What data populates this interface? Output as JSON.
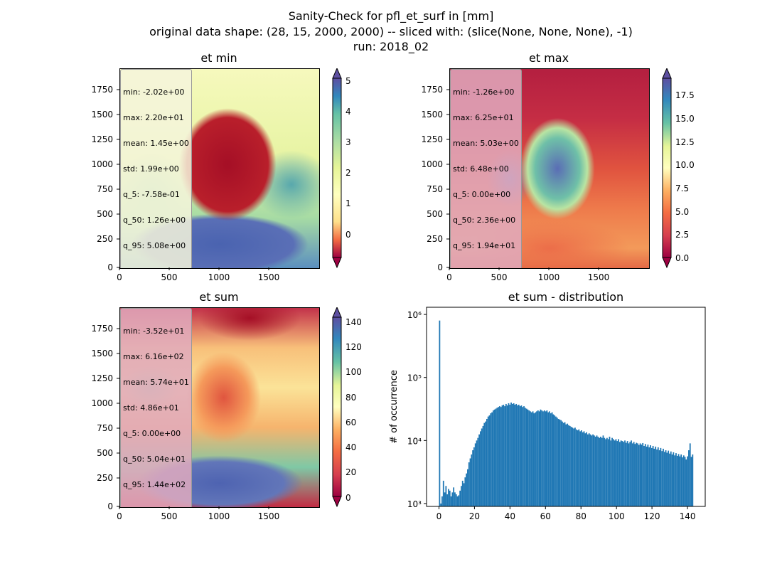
{
  "title": {
    "line1": "Sanity-Check for pfl_et_surf in [mm]",
    "line2": "original data shape: (28, 15, 2000, 2000) -- sliced with: (slice(None, None, None), -1)",
    "line3": "run: 2018_02"
  },
  "panels": {
    "et_min": {
      "title": "et min",
      "stats": [
        "min: -2.02e+00",
        "max: 2.20e+01",
        "mean: 1.45e+00",
        "std: 1.99e+00",
        "q_5: -7.58e-01",
        "q_50: 1.26e+00",
        "q_95: 5.08e+00"
      ],
      "colorbar_ticks": [
        "5",
        "4",
        "3",
        "2",
        "1",
        "0"
      ]
    },
    "et_max": {
      "title": "et max",
      "stats": [
        "min: -1.26e+00",
        "max: 6.25e+01",
        "mean: 5.03e+00",
        "std: 6.48e+00",
        "q_5: 0.00e+00",
        "q_50: 2.36e+00",
        "q_95: 1.94e+01"
      ],
      "colorbar_ticks": [
        "17.5",
        "15.0",
        "12.5",
        "10.0",
        "7.5",
        "5.0",
        "2.5",
        "0.0"
      ]
    },
    "et_sum": {
      "title": "et sum",
      "stats": [
        "min: -3.52e+01",
        "max: 6.16e+02",
        "mean: 5.74e+01",
        "std: 4.86e+01",
        "q_5: 0.00e+00",
        "q_50: 5.04e+01",
        "q_95: 1.44e+02"
      ],
      "colorbar_ticks": [
        "140",
        "120",
        "100",
        "80",
        "60",
        "40",
        "20",
        "0"
      ]
    }
  },
  "map_axes": {
    "x_ticks": [
      "0",
      "500",
      "1000",
      "1500"
    ],
    "y_ticks": [
      "1750",
      "1500",
      "1250",
      "1000",
      "750",
      "500",
      "250",
      "0"
    ]
  },
  "chart_data": {
    "type": "bar",
    "title": "et sum - distribution",
    "xlabel": "",
    "ylabel": "# of occurrence",
    "yscale": "log",
    "xlim": [
      -7,
      150
    ],
    "ylim": [
      900,
      1300000
    ],
    "x_ticks": [
      0,
      20,
      40,
      60,
      80,
      100,
      120,
      140
    ],
    "y_ticks": [
      1000,
      10000,
      100000,
      1000000
    ],
    "y_tick_labels": [
      "10³",
      "10⁴",
      "10⁵",
      "10⁶"
    ],
    "color": "#1f77b4",
    "bin_width": 0.72,
    "bins": [
      [
        0,
        800000
      ],
      [
        0.72,
        1000
      ],
      [
        1.44,
        1300
      ],
      [
        2.16,
        2300
      ],
      [
        2.88,
        1500
      ],
      [
        3.6,
        1900
      ],
      [
        4.32,
        1400
      ],
      [
        5.04,
        1700
      ],
      [
        5.76,
        1600
      ],
      [
        6.48,
        1300
      ],
      [
        7.2,
        1500
      ],
      [
        7.92,
        1800
      ],
      [
        8.64,
        1500
      ],
      [
        9.36,
        1400
      ],
      [
        10.08,
        1300
      ],
      [
        10.8,
        1350
      ],
      [
        11.52,
        1600
      ],
      [
        12.24,
        1900
      ],
      [
        12.96,
        2300
      ],
      [
        13.68,
        2100
      ],
      [
        14.4,
        2600
      ],
      [
        15.12,
        3000
      ],
      [
        15.84,
        3500
      ],
      [
        16.56,
        4500
      ],
      [
        17.28,
        5200
      ],
      [
        18,
        6000
      ],
      [
        18.72,
        7000
      ],
      [
        19.44,
        7800
      ],
      [
        20.16,
        9000
      ],
      [
        20.88,
        10000
      ],
      [
        21.6,
        11000
      ],
      [
        22.32,
        12500
      ],
      [
        23.04,
        14000
      ],
      [
        23.76,
        15500
      ],
      [
        24.48,
        17000
      ],
      [
        25.2,
        19000
      ],
      [
        25.92,
        20000
      ],
      [
        26.64,
        22000
      ],
      [
        27.36,
        24000
      ],
      [
        28.08,
        25000
      ],
      [
        28.8,
        27000
      ],
      [
        29.52,
        28000
      ],
      [
        30.24,
        30000
      ],
      [
        30.96,
        31000
      ],
      [
        31.68,
        32000
      ],
      [
        32.4,
        33000
      ],
      [
        33.12,
        34000
      ],
      [
        33.84,
        35000
      ],
      [
        34.56,
        34000
      ],
      [
        35.28,
        36000
      ],
      [
        36,
        37000
      ],
      [
        36.72,
        35000
      ],
      [
        37.44,
        38000
      ],
      [
        38.16,
        36000
      ],
      [
        38.88,
        39000
      ],
      [
        39.6,
        37000
      ],
      [
        40.32,
        40000
      ],
      [
        41.04,
        38000
      ],
      [
        41.76,
        39000
      ],
      [
        42.48,
        37000
      ],
      [
        43.2,
        38000
      ],
      [
        43.92,
        36000
      ],
      [
        44.64,
        37000
      ],
      [
        45.36,
        35000
      ],
      [
        46.08,
        36000
      ],
      [
        46.8,
        34000
      ],
      [
        47.52,
        35000
      ],
      [
        48.24,
        33000
      ],
      [
        48.96,
        32000
      ],
      [
        49.68,
        31000
      ],
      [
        50.4,
        30000
      ],
      [
        51.12,
        29000
      ],
      [
        51.84,
        28000
      ],
      [
        52.56,
        29000
      ],
      [
        53.28,
        27000
      ],
      [
        54,
        28000
      ],
      [
        54.72,
        29000
      ],
      [
        55.44,
        30000
      ],
      [
        56.16,
        29000
      ],
      [
        56.88,
        31000
      ],
      [
        57.6,
        30000
      ],
      [
        58.32,
        29000
      ],
      [
        59.04,
        30000
      ],
      [
        59.76,
        29000
      ],
      [
        60.48,
        30000
      ],
      [
        61.2,
        28000
      ],
      [
        61.92,
        29000
      ],
      [
        62.64,
        27000
      ],
      [
        63.36,
        28000
      ],
      [
        64.08,
        26000
      ],
      [
        64.8,
        25000
      ],
      [
        65.52,
        24000
      ],
      [
        66.24,
        23000
      ],
      [
        66.96,
        22000
      ],
      [
        67.68,
        21500
      ],
      [
        68.4,
        21000
      ],
      [
        69.12,
        20000
      ],
      [
        69.84,
        19000
      ],
      [
        70.56,
        19500
      ],
      [
        71.28,
        18000
      ],
      [
        72,
        18500
      ],
      [
        72.72,
        17500
      ],
      [
        73.44,
        17000
      ],
      [
        74.16,
        16500
      ],
      [
        74.88,
        16000
      ],
      [
        75.6,
        15500
      ],
      [
        76.32,
        16000
      ],
      [
        77.04,
        15000
      ],
      [
        77.76,
        14500
      ],
      [
        78.48,
        15000
      ],
      [
        79.2,
        14000
      ],
      [
        79.92,
        14500
      ],
      [
        80.64,
        13500
      ],
      [
        81.36,
        14000
      ],
      [
        82.08,
        13000
      ],
      [
        82.8,
        13500
      ],
      [
        83.52,
        12500
      ],
      [
        84.24,
        13000
      ],
      [
        84.96,
        12500
      ],
      [
        85.68,
        12000
      ],
      [
        86.4,
        12500
      ],
      [
        87.12,
        12000
      ],
      [
        87.84,
        11500
      ],
      [
        88.56,
        12000
      ],
      [
        89.28,
        11500
      ],
      [
        90,
        11000
      ],
      [
        90.72,
        11500
      ],
      [
        91.44,
        11000
      ],
      [
        92.16,
        12000
      ],
      [
        92.88,
        11000
      ],
      [
        93.6,
        10500
      ],
      [
        94.32,
        11000
      ],
      [
        95.04,
        10500
      ],
      [
        95.76,
        11500
      ],
      [
        96.48,
        10000
      ],
      [
        97.2,
        11000
      ],
      [
        97.92,
        10500
      ],
      [
        98.64,
        10000
      ],
      [
        99.36,
        10500
      ],
      [
        100.08,
        9800
      ],
      [
        100.8,
        10500
      ],
      [
        101.52,
        9500
      ],
      [
        102.24,
        10000
      ],
      [
        102.96,
        9800
      ],
      [
        103.68,
        9500
      ],
      [
        104.4,
        10000
      ],
      [
        105.12,
        9200
      ],
      [
        105.84,
        9800
      ],
      [
        106.56,
        9000
      ],
      [
        107.28,
        9500
      ],
      [
        108,
        10000
      ],
      [
        108.72,
        9000
      ],
      [
        109.44,
        9500
      ],
      [
        110.16,
        8800
      ],
      [
        110.88,
        9200
      ],
      [
        111.6,
        9000
      ],
      [
        112.32,
        8500
      ],
      [
        113.04,
        9000
      ],
      [
        113.76,
        8600
      ],
      [
        114.48,
        9100
      ],
      [
        115.2,
        8200
      ],
      [
        115.92,
        8800
      ],
      [
        116.64,
        8000
      ],
      [
        117.36,
        8600
      ],
      [
        118.08,
        7800
      ],
      [
        118.8,
        8400
      ],
      [
        119.52,
        7600
      ],
      [
        120.24,
        8200
      ],
      [
        120.96,
        7400
      ],
      [
        121.68,
        8000
      ],
      [
        122.4,
        7200
      ],
      [
        123.12,
        7800
      ],
      [
        123.84,
        7000
      ],
      [
        124.56,
        7600
      ],
      [
        125.28,
        6800
      ],
      [
        126,
        7400
      ],
      [
        126.72,
        6600
      ],
      [
        127.44,
        7000
      ],
      [
        128.16,
        6400
      ],
      [
        128.88,
        6900
      ],
      [
        129.6,
        6200
      ],
      [
        130.32,
        6700
      ],
      [
        131.04,
        6000
      ],
      [
        131.76,
        6500
      ],
      [
        132.48,
        5800
      ],
      [
        133.2,
        6300
      ],
      [
        133.92,
        5700
      ],
      [
        134.64,
        6100
      ],
      [
        135.36,
        5600
      ],
      [
        136.08,
        6000
      ],
      [
        136.8,
        5400
      ],
      [
        137.52,
        5800
      ],
      [
        138.24,
        5500
      ],
      [
        138.96,
        5000
      ],
      [
        139.68,
        5600
      ],
      [
        140.4,
        7000
      ],
      [
        141.12,
        9000
      ],
      [
        141.84,
        5500
      ],
      [
        142.56,
        6000
      ]
    ]
  }
}
